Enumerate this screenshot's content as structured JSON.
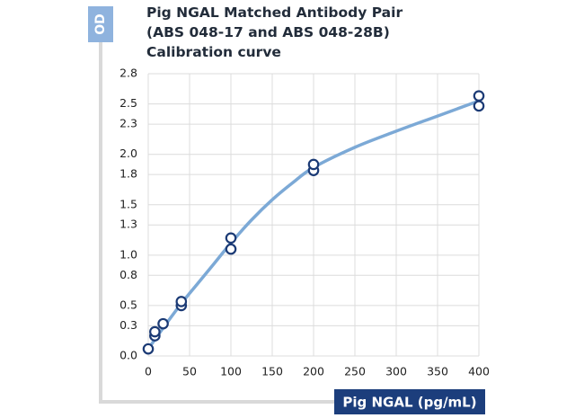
{
  "chart_data": {
    "type": "scatter",
    "title_lines": [
      "Pig NGAL Matched Antibody Pair",
      "(ABS 048-17 and ABS 048-28B)",
      "Calibration curve"
    ],
    "xlabel": "Pig NGAL (pg/mL)",
    "ylabel": "OD",
    "xlim": [
      0,
      400
    ],
    "ylim": [
      0,
      2.8
    ],
    "x_ticks": [
      0,
      50,
      100,
      150,
      200,
      250,
      300,
      350,
      400
    ],
    "y_ticks": [
      0.0,
      0.3,
      0.5,
      0.8,
      1.0,
      1.3,
      1.5,
      1.8,
      2.0,
      2.3,
      2.5,
      2.8
    ],
    "y_tick_labels": [
      "0.0",
      "0.3",
      "0.5",
      "0.8",
      "1.0",
      "1.3",
      "1.5",
      "1.8",
      "2.0",
      "2.3",
      "2.5",
      "2.8"
    ],
    "grid": true,
    "points": [
      {
        "x": 0,
        "y": 0.07
      },
      {
        "x": 8,
        "y": 0.2
      },
      {
        "x": 8,
        "y": 0.24
      },
      {
        "x": 18,
        "y": 0.32
      },
      {
        "x": 40,
        "y": 0.5
      },
      {
        "x": 40,
        "y": 0.54
      },
      {
        "x": 100,
        "y": 1.06
      },
      {
        "x": 100,
        "y": 1.17
      },
      {
        "x": 200,
        "y": 1.84
      },
      {
        "x": 200,
        "y": 1.9
      },
      {
        "x": 400,
        "y": 2.48
      },
      {
        "x": 400,
        "y": 2.58
      }
    ],
    "fit_curve": {
      "x": [
        0,
        20,
        40,
        60,
        80,
        100,
        125,
        150,
        175,
        200,
        250,
        300,
        350,
        400
      ],
      "y": [
        0.07,
        0.3,
        0.52,
        0.72,
        0.92,
        1.12,
        1.35,
        1.55,
        1.72,
        1.87,
        2.07,
        2.23,
        2.38,
        2.53
      ]
    },
    "colors": {
      "curve": "#7ca9d6",
      "marker": "#1b3a75",
      "axis_box": "#1c3e7c",
      "od_tab": "#8fb3de",
      "grid": "#dcdcdc",
      "frame": "#d9d9d9"
    }
  }
}
